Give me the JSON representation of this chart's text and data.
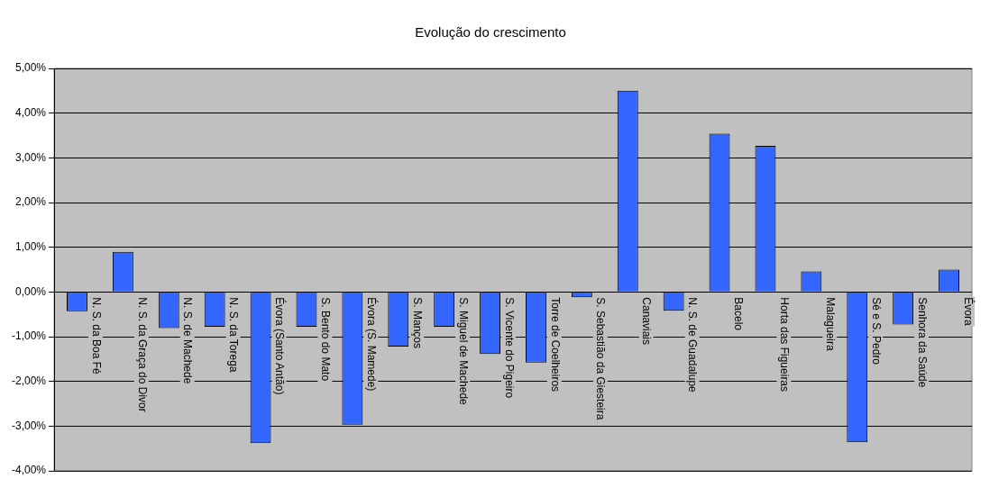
{
  "chart_data": {
    "type": "bar",
    "title": "Evolução do crescimento",
    "categories": [
      "N. S. da Boa Fé",
      "N. S. da Graça do Divor",
      "N. S. de Machede",
      "N. S. da Torega",
      "Évora (Santo Antão)",
      "S. Bento do Mato",
      "Évora (S. Mamede)",
      "S. Manços",
      "S. Miguel de Machede",
      "S. Vicente do Pigeiro",
      "Torre de Coelheiros",
      "S. Sebastião da Giesteira",
      "Canaviais",
      "N. S. de Guadalupe",
      "Bacelo",
      "Horta das Figueiras",
      "Malagueira",
      "Sé e S. Pedro",
      "Senhora da Saúde",
      "Évora"
    ],
    "values": [
      -0.43,
      0.9,
      -0.81,
      -0.78,
      -3.38,
      -0.78,
      -2.97,
      -1.22,
      -0.78,
      -1.39,
      -1.58,
      -0.12,
      4.5,
      -0.42,
      3.54,
      3.27,
      0.46,
      -3.36,
      -0.73,
      0.5
    ],
    "color": "#3366ff",
    "ylim": [
      -4,
      5
    ],
    "yticks": [
      {
        "value": -4,
        "label": "-4,00%"
      },
      {
        "value": -3,
        "label": "-3,00%"
      },
      {
        "value": -2,
        "label": "-2,00%"
      },
      {
        "value": -1,
        "label": "-1,00%"
      },
      {
        "value": 0,
        "label": "0,00%"
      },
      {
        "value": 1,
        "label": "1,00%"
      },
      {
        "value": 2,
        "label": "2,00%"
      },
      {
        "value": 3,
        "label": "3,00%"
      },
      {
        "value": 4,
        "label": "4,00%"
      },
      {
        "value": 5,
        "label": "5,00%"
      }
    ],
    "grid": "y",
    "legend": false
  }
}
